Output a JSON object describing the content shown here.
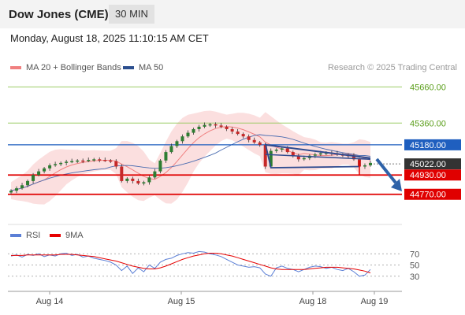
{
  "header": {
    "title": "Dow Jones (CME)",
    "timeframe": "30 MIN"
  },
  "timestamp": "Monday, August 18, 2025 11:10:15 AM CET",
  "legend": {
    "bb_label": "MA 20 + Bollinger Bands",
    "ma50_label": "MA 50",
    "rsi_label": "RSI",
    "rsi_ma_label": "9MA",
    "colors": {
      "bb": "#f08080",
      "ma50": "#2c4f8f",
      "rsi": "#5b7fd6",
      "rsi_ma": "#e60000"
    }
  },
  "credit": "Research © 2025 Trading Central",
  "chart_data": {
    "type": "candlestick",
    "price_axis": {
      "ylim": [
        44540,
        45760
      ],
      "levels": [
        {
          "value": 45660,
          "label": "45660.00",
          "kind": "green-line"
        },
        {
          "value": 45360,
          "label": "45360.00",
          "kind": "green-line"
        },
        {
          "value": 45180,
          "label": "45180.00",
          "kind": "blue-tag"
        },
        {
          "value": 45022,
          "label": "45022.00",
          "kind": "last-price"
        },
        {
          "value": 44930,
          "label": "44930.00",
          "kind": "red-tag"
        },
        {
          "value": 44770,
          "label": "44770.00",
          "kind": "red-tag"
        }
      ]
    },
    "x_labels": [
      "Aug 14",
      "Aug 15",
      "Aug 18",
      "Aug 19"
    ],
    "close_path": [
      44800,
      44820,
      44845,
      44880,
      44930,
      44960,
      44985,
      45010,
      45020,
      45030,
      45040,
      45045,
      45050,
      45048,
      45055,
      45060,
      45055,
      45050,
      45045,
      45000,
      44880,
      44900,
      44880,
      44860,
      44870,
      44910,
      44960,
      45050,
      45120,
      45170,
      45210,
      45250,
      45280,
      45310,
      45330,
      45345,
      45350,
      45340,
      45330,
      45310,
      45290,
      45270,
      45250,
      45220,
      45200,
      45180,
      45000,
      45130,
      45140,
      45150,
      45120,
      45090,
      45060,
      45070,
      45090,
      45100,
      45110,
      45115,
      45110,
      45100,
      45095,
      45090,
      45060,
      45000,
      45010,
      45030
    ],
    "rsi": {
      "ylim": [
        10,
        90
      ],
      "ticks": [
        70,
        50,
        30
      ],
      "rsi_values": [
        66,
        68,
        64,
        69,
        67,
        70,
        65,
        68,
        66,
        70,
        71,
        67,
        69,
        64,
        66,
        62,
        60,
        58,
        55,
        50,
        40,
        48,
        35,
        45,
        38,
        50,
        44,
        55,
        60,
        62,
        67,
        70,
        72,
        71,
        74,
        73,
        70,
        68,
        65,
        60,
        55,
        50,
        48,
        46,
        47,
        45,
        34,
        30,
        45,
        48,
        44,
        42,
        38,
        42,
        46,
        48,
        47,
        44,
        46,
        42,
        40,
        44,
        38,
        30,
        32,
        42
      ],
      "ma_values": [
        67,
        67,
        67,
        68,
        68,
        68,
        68,
        68,
        68,
        69,
        69,
        69,
        68,
        67,
        66,
        65,
        63,
        61,
        59,
        57,
        54,
        51,
        48,
        46,
        44,
        43,
        43,
        45,
        48,
        52,
        56,
        60,
        63,
        66,
        68,
        70,
        71,
        71,
        70,
        68,
        66,
        63,
        60,
        57,
        54,
        51,
        48,
        45,
        43,
        42,
        42,
        42,
        42,
        42,
        43,
        44,
        45,
        46,
        46,
        46,
        45,
        44,
        43,
        41,
        39,
        36
      ]
    }
  }
}
